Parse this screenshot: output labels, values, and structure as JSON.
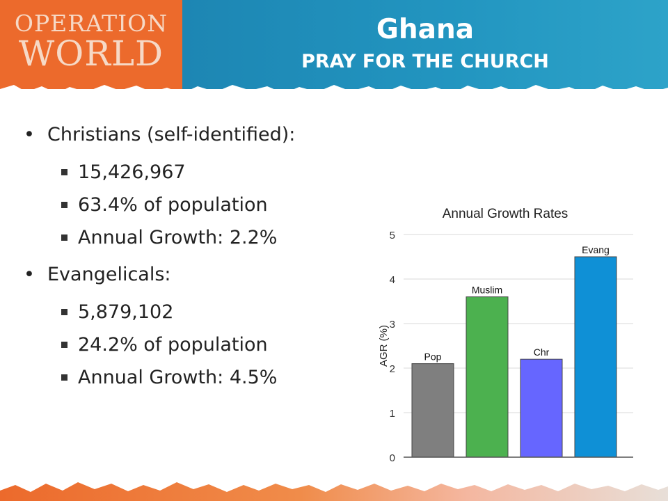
{
  "header": {
    "logo_line1": "OPERATION",
    "logo_line2": "WORLD",
    "title": "Ghana",
    "subtitle": "PRAY FOR THE CHURCH"
  },
  "bullets": [
    {
      "label": "Christians (self-identified):",
      "items": [
        "15,426,967",
        "63.4% of population",
        "Annual Growth: 2.2%"
      ]
    },
    {
      "label": "Evangelicals:",
      "items": [
        "5,879,102",
        "24.2% of population",
        "Annual Growth: 4.5%"
      ]
    }
  ],
  "colors": {
    "logo_orange": "#ec6a2c",
    "header_blue": "#1d86b3"
  },
  "chart_data": {
    "type": "bar",
    "title": "Annual Growth Rates",
    "ylabel": "AGR (%)",
    "xlabel": "",
    "categories": [
      "Pop",
      "Muslim",
      "Chr",
      "Evang"
    ],
    "values": [
      2.1,
      3.6,
      2.2,
      4.5
    ],
    "colors": [
      "#7f7f7f",
      "#4cb14f",
      "#6666ff",
      "#0f90d6"
    ],
    "ylim": [
      0,
      5
    ],
    "yticks": [
      "0",
      "1",
      "2",
      "3",
      "4",
      "5"
    ],
    "grid": true,
    "legend": "none"
  }
}
